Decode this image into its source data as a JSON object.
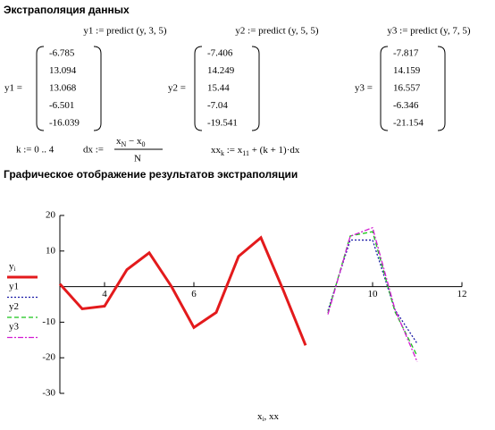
{
  "header": {
    "title": "Экстраполяция данных"
  },
  "formulas": [
    "y1 := predict (y, 3, 5)",
    "y2 := predict (y, 5, 5)",
    "y3 := predict (y, 7, 5)"
  ],
  "matrices": [
    {
      "name": "y1 =",
      "values": [
        -6.785,
        13.094,
        13.068,
        -6.501,
        -16.039
      ]
    },
    {
      "name": "y2 =",
      "values": [
        -7.406,
        14.249,
        15.44,
        -7.04,
        -19.541
      ]
    },
    {
      "name": "y3 =",
      "values": [
        -7.817,
        14.159,
        16.557,
        -6.346,
        -21.154
      ]
    }
  ],
  "definitions": {
    "k": "k := 0 .. 4",
    "dx": {
      "lhs": "dx :=",
      "num": "x",
      "num_sub": "N",
      "num_mid": " − x",
      "num_sub2": "0",
      "den": "N"
    },
    "xx": {
      "lhs": "xx",
      "lhs_sub": "k",
      "mid": " := x",
      "mid_sub": "11",
      "rhs": " + (k + 1)·dx"
    }
  },
  "section": {
    "title": "Графическое отображение результатов экстраполяции"
  },
  "chart_data": {
    "type": "line",
    "x_label": {
      "main": "x",
      "sub": "i",
      "rest": ", xx"
    },
    "xlim": [
      3,
      12
    ],
    "ylim": [
      -30,
      20
    ],
    "xticks": [
      4,
      6,
      10,
      12
    ],
    "yticks": [
      20,
      10,
      -10,
      -20,
      -30
    ],
    "series": [
      {
        "name": "y",
        "name_sub": "i",
        "color": "#e31a1c",
        "style": "solid",
        "x": [
          3,
          3.5,
          4,
          4.5,
          5,
          5.5,
          6,
          6.5,
          7,
          7.5,
          8,
          8.5
        ],
        "values": [
          0.75,
          -6.25,
          -5.5,
          4.75,
          9.5,
          0,
          -11.5,
          -7.25,
          8.5,
          13.75,
          -1,
          -16.5
        ]
      },
      {
        "name": "y1",
        "color": "#1a1aa6",
        "style": "dotted",
        "x": [
          9,
          9.5,
          10,
          10.5,
          11
        ],
        "values": [
          -6.785,
          13.094,
          13.068,
          -6.501,
          -16.039
        ]
      },
      {
        "name": "y2",
        "color": "#19c419",
        "style": "dashed",
        "x": [
          9,
          9.5,
          10,
          10.5,
          11
        ],
        "values": [
          -7.406,
          14.249,
          15.44,
          -7.04,
          -19.541
        ]
      },
      {
        "name": "y3",
        "color": "#d21bd2",
        "style": "dashdot",
        "x": [
          9,
          9.5,
          10,
          10.5,
          11
        ],
        "values": [
          -7.817,
          14.159,
          16.557,
          -6.346,
          -21.154
        ]
      }
    ]
  }
}
